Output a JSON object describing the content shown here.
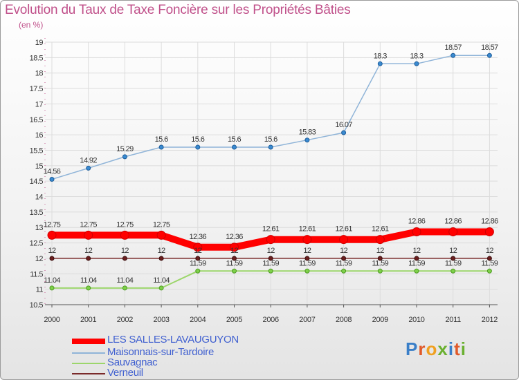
{
  "title": "Evolution du Taux de Taxe Foncière sur les Propriétés Bâties",
  "unit_label": "(en %)",
  "logo_text": "Proxiti",
  "colors": {
    "title": "#c0508a",
    "axis": "#c0508a",
    "les_salles": "#ff0000",
    "maisonnais": "#8fb4d8",
    "sauvagnac": "#9cd66b",
    "verneuil": "#7a2a2a",
    "legend_text": "#4060d0"
  },
  "chart_data": {
    "type": "line",
    "title": "Evolution du Taux de Taxe Foncière sur les Propriétés Bâties",
    "ylabel": "(en %)",
    "xlabel": "",
    "x": [
      "2000",
      "2001",
      "2002",
      "2003",
      "2004",
      "2005",
      "2006",
      "2007",
      "2008",
      "2009",
      "2010",
      "2011",
      "2012"
    ],
    "ylim": [
      10.5,
      19
    ],
    "yticks": [
      "10.5",
      "11",
      "11.5",
      "12",
      "12.5",
      "13",
      "13.5",
      "14",
      "14.5",
      "15",
      "15.5",
      "16",
      "16.5",
      "17",
      "17.5",
      "18",
      "18.5",
      "19"
    ],
    "legend_position": "bottom-left",
    "series": [
      {
        "name": "LES SALLES-LAVAUGUYON",
        "values": [
          12.75,
          12.75,
          12.75,
          12.75,
          12.36,
          12.36,
          12.61,
          12.61,
          12.61,
          12.61,
          12.86,
          12.86,
          12.86
        ],
        "labels": [
          "12.75",
          "12.75",
          "12.75",
          "12.75",
          "12.36",
          "12.36",
          "12.61",
          "12.61",
          "12.61",
          "12.61",
          "12.86",
          "12.86",
          "12.86"
        ]
      },
      {
        "name": "Maisonnais-sur-Tardoire",
        "values": [
          14.56,
          14.92,
          15.29,
          15.6,
          15.6,
          15.6,
          15.6,
          15.83,
          16.07,
          18.3,
          18.3,
          18.57,
          18.57
        ],
        "labels": [
          "14.56",
          "14.92",
          "15.29",
          "15.6",
          "15.6",
          "15.6",
          "15.6",
          "15.83",
          "16.07",
          "18.3",
          "18.3",
          "18.57",
          "18.57"
        ]
      },
      {
        "name": "Sauvagnac",
        "values": [
          11.04,
          11.04,
          11.04,
          11.04,
          11.59,
          11.59,
          11.59,
          11.59,
          11.59,
          11.59,
          11.59,
          11.59,
          11.59
        ],
        "labels": [
          "11.04",
          "11.04",
          "11.04",
          "11.04",
          "11.59",
          "11.59",
          "11.59",
          "11.59",
          "11.59",
          "11.59",
          "11.59",
          "11.59",
          "11.59"
        ]
      },
      {
        "name": "Verneuil",
        "values": [
          12,
          12,
          12,
          12,
          12,
          12,
          12,
          12,
          12,
          12,
          12,
          12,
          12
        ],
        "labels": [
          "12",
          "12",
          "12",
          "12",
          "12",
          "12",
          "12",
          "12",
          "12",
          "12",
          "12",
          "12",
          "12"
        ]
      }
    ]
  }
}
